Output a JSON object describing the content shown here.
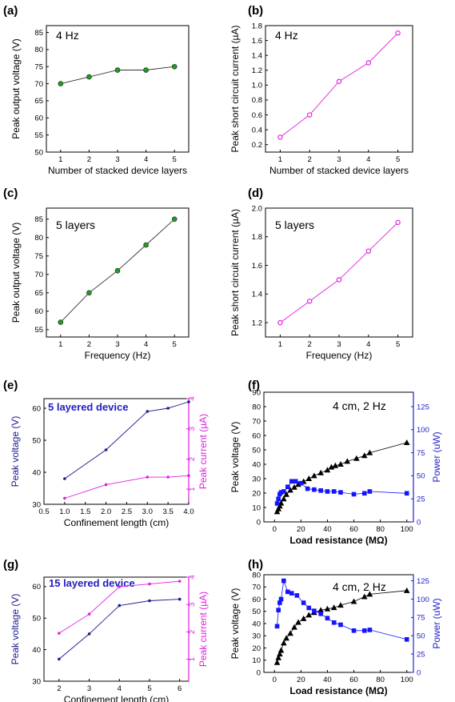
{
  "chart_data": [
    {
      "panel": "(a)",
      "type": "line",
      "annotation": "4 Hz",
      "xlabel": "Number of stacked device layers",
      "ylabel": "Peak output voltage (V)",
      "xlim": [
        0.5,
        5.5
      ],
      "ylim": [
        50,
        87
      ],
      "xticks": [
        1,
        2,
        3,
        4,
        5
      ],
      "yticks": [
        50,
        55,
        60,
        65,
        70,
        75,
        80,
        85
      ],
      "marker_color": "#1e9e1e",
      "line_color": "#333333",
      "series": [
        {
          "x": [
            1,
            2,
            3,
            4,
            5
          ],
          "y": [
            70,
            72,
            74,
            74,
            75
          ]
        }
      ]
    },
    {
      "panel": "(b)",
      "type": "line",
      "annotation": "4 Hz",
      "xlabel": "Number of stacked device layers",
      "ylabel": "Peak short circuit current (µA)",
      "xlim": [
        0.5,
        5.5
      ],
      "ylim": [
        0.1,
        1.8
      ],
      "xticks": [
        1,
        2,
        3,
        4,
        5
      ],
      "yticks": [
        "0.2",
        "0.4",
        "0.6",
        "0.8",
        "1.0",
        "1.2",
        "1.4",
        "1.6",
        "1.8"
      ],
      "marker_color": "#e020e0",
      "line_color": "#e020e0",
      "series": [
        {
          "x": [
            1,
            2,
            3,
            4,
            5
          ],
          "y": [
            0.3,
            0.6,
            1.05,
            1.3,
            1.7
          ]
        }
      ]
    },
    {
      "panel": "(c)",
      "type": "line",
      "annotation": "5 layers",
      "xlabel": "Frequency (Hz)",
      "ylabel": "Peak output voltage (V)",
      "xlim": [
        0.5,
        5.5
      ],
      "ylim": [
        53,
        88
      ],
      "xticks": [
        1,
        2,
        3,
        4,
        5
      ],
      "yticks": [
        55,
        60,
        65,
        70,
        75,
        80,
        85
      ],
      "marker_color": "#1e9e1e",
      "line_color": "#333333",
      "series": [
        {
          "x": [
            1,
            2,
            3,
            4,
            5
          ],
          "y": [
            57,
            65,
            71,
            78,
            85
          ]
        }
      ]
    },
    {
      "panel": "(d)",
      "type": "line",
      "annotation": "5 layers",
      "xlabel": "Frequency (Hz)",
      "ylabel": "Peak short circuit current (µA)",
      "xlim": [
        0.5,
        5.5
      ],
      "ylim": [
        1.1,
        2.0
      ],
      "xticks": [
        1,
        2,
        3,
        4,
        5
      ],
      "yticks": [
        "1.2",
        "1.4",
        "1.6",
        "1.8",
        "2.0"
      ],
      "marker_color": "#e020e0",
      "line_color": "#e020e0",
      "series": [
        {
          "x": [
            1,
            2,
            3,
            4,
            5
          ],
          "y": [
            1.2,
            1.35,
            1.5,
            1.7,
            1.9
          ]
        }
      ]
    },
    {
      "panel": "(e)",
      "type": "line",
      "annotation": "5 layered device",
      "annotation_color": "#2020c0",
      "xlabel": "Confinement length (cm)",
      "ylabel": "Peak voltage (V)",
      "ylabel_color": "#1a1a8c",
      "y2label": "Peak current (µA)",
      "y2label_color": "#e020e0",
      "xlim": [
        0.5,
        4.0
      ],
      "ylim": [
        30,
        63
      ],
      "y2lim": [
        0.5,
        4.0
      ],
      "xticks": [
        "0.5",
        "1.0",
        "1.5",
        "2.0",
        "2.5",
        "3.0",
        "3.5",
        "4.0"
      ],
      "yticks": [
        30,
        40,
        50,
        60
      ],
      "y2ticks": [
        1,
        2,
        3,
        4
      ],
      "series": [
        {
          "axis": "left",
          "color": "#1a1a8c",
          "x": [
            1,
            2,
            3,
            3.5,
            4
          ],
          "y": [
            38,
            47,
            59,
            60,
            62
          ]
        },
        {
          "axis": "right",
          "color": "#e020e0",
          "x": [
            1,
            2,
            3,
            3.5,
            4
          ],
          "y": [
            0.7,
            1.15,
            1.4,
            1.4,
            1.45
          ]
        }
      ]
    },
    {
      "panel": "(f)",
      "type": "scatter",
      "annotation": "4 cm, 2 Hz",
      "xlabel": "Load resistance (MΩ)",
      "ylabel": "Peak voltage (V)",
      "y2label": "Power (uW)",
      "y2label_color": "#2020d0",
      "xlim": [
        -8,
        105
      ],
      "ylim": [
        0,
        90
      ],
      "y2lim": [
        0,
        140.6
      ],
      "xticks": [
        0,
        20,
        40,
        60,
        80,
        100
      ],
      "yticks": [
        0,
        10,
        20,
        30,
        40,
        50,
        60,
        70,
        80,
        90
      ],
      "y2ticks": [
        0,
        25,
        50,
        75,
        100,
        125
      ],
      "series": [
        {
          "axis": "left",
          "marker": "triangle",
          "color": "#000000",
          "x": [
            2,
            3,
            4,
            5,
            7,
            9,
            12,
            15,
            18,
            22,
            26,
            30,
            35,
            40,
            43,
            46,
            50,
            55,
            62,
            68,
            72,
            100
          ],
          "y": [
            7,
            9,
            11,
            13,
            16,
            19,
            22,
            24,
            26,
            28,
            30,
            32,
            34,
            36,
            38,
            39,
            40,
            42,
            44,
            46,
            48,
            55
          ]
        },
        {
          "axis": "right",
          "marker": "square",
          "color": "#1414ff",
          "x": [
            2,
            3,
            4,
            5,
            7,
            10,
            13,
            16,
            20,
            25,
            30,
            35,
            40,
            45,
            50,
            60,
            68,
            72,
            100
          ],
          "y": [
            20,
            25,
            30,
            32,
            33,
            38,
            44,
            44,
            42,
            36,
            35,
            34,
            33,
            33,
            32,
            30,
            31,
            33,
            31
          ]
        }
      ]
    },
    {
      "panel": "(g)",
      "type": "line",
      "annotation": "15 layered device",
      "annotation_color": "#2020c0",
      "xlabel": "Confinement length (cm)",
      "ylabel": "Peak voltage (V)",
      "ylabel_color": "#1a1a8c",
      "y2label": "Peak current (µA)",
      "y2label_color": "#e020e0",
      "xlim": [
        1.5,
        6.3
      ],
      "ylim": [
        30,
        63
      ],
      "y2lim": [
        0.2,
        4.0
      ],
      "xticks": [
        2,
        3,
        4,
        5,
        6
      ],
      "yticks": [
        30,
        40,
        50,
        60
      ],
      "y2ticks": [
        1,
        2,
        3,
        4
      ],
      "series": [
        {
          "axis": "left",
          "color": "#1a1a8c",
          "x": [
            2,
            3,
            4,
            5,
            6
          ],
          "y": [
            37,
            45,
            54,
            55.5,
            56
          ]
        },
        {
          "axis": "right",
          "color": "#e020e0",
          "x": [
            2,
            3,
            4,
            5,
            6
          ],
          "y": [
            1.95,
            2.65,
            3.65,
            3.75,
            3.85
          ]
        }
      ]
    },
    {
      "panel": "(h)",
      "type": "scatter",
      "annotation": "4 cm, 2 Hz",
      "xlabel": "Load resistance (MΩ)",
      "ylabel": "Peak voltage (V)",
      "y2label": "Power (uW)",
      "y2label_color": "#2020d0",
      "xlim": [
        -8,
        105
      ],
      "ylim": [
        0,
        80
      ],
      "y2lim": [
        0,
        133.3
      ],
      "xticks": [
        0,
        20,
        40,
        60,
        80,
        100
      ],
      "yticks": [
        0,
        10,
        20,
        30,
        40,
        50,
        60,
        70,
        80
      ],
      "y2ticks": [
        0,
        25,
        50,
        75,
        100,
        125
      ],
      "series": [
        {
          "axis": "left",
          "marker": "triangle",
          "color": "#000000",
          "x": [
            2,
            3,
            4,
            5,
            7,
            9,
            12,
            15,
            18,
            22,
            26,
            30,
            35,
            40,
            45,
            50,
            60,
            68,
            72,
            100
          ],
          "y": [
            8,
            12,
            15,
            18,
            24,
            28,
            32,
            37,
            41,
            44,
            47,
            49,
            51,
            52,
            53,
            55,
            58,
            62,
            64,
            67
          ]
        },
        {
          "axis": "right",
          "marker": "square",
          "color": "#1414ff",
          "x": [
            2,
            3,
            4,
            5,
            7,
            10,
            13,
            17,
            22,
            26,
            30,
            35,
            40,
            45,
            50,
            60,
            68,
            72,
            100
          ],
          "y": [
            63,
            85,
            95,
            100,
            125,
            110,
            108,
            105,
            95,
            88,
            84,
            80,
            74,
            68,
            65,
            57,
            57,
            58,
            45
          ]
        }
      ]
    }
  ]
}
